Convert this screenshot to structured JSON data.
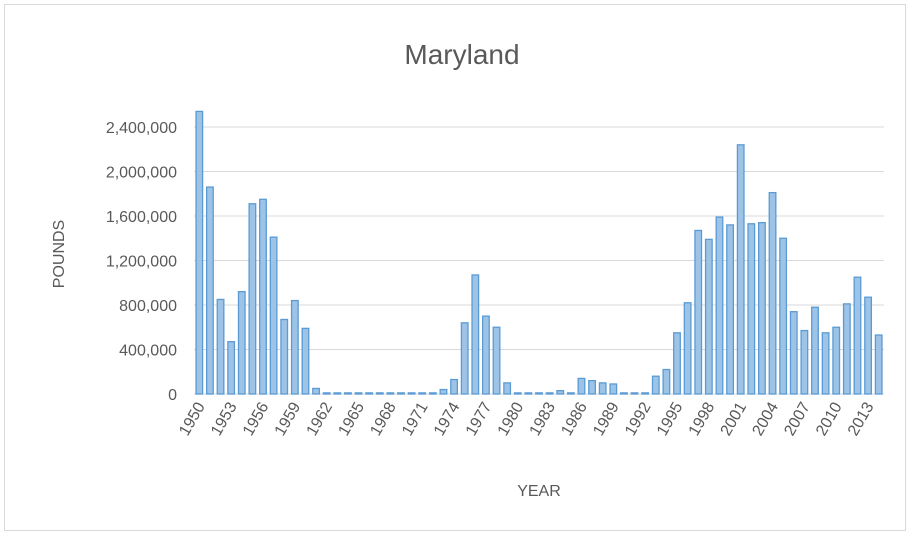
{
  "chart_data": {
    "type": "bar",
    "title": "Maryland",
    "xlabel": "YEAR",
    "ylabel": "POUNDS",
    "ylim": [
      0,
      2600000
    ],
    "y_ticks": [
      0,
      400000,
      800000,
      1200000,
      1600000,
      2000000,
      2400000
    ],
    "y_tick_labels": [
      "0",
      "400,000",
      "800,000",
      "1,200,000",
      "1,600,000",
      "2,000,000",
      "2,400,000"
    ],
    "x_tick_labels": [
      "1950",
      "1953",
      "1956",
      "1959",
      "1962",
      "1965",
      "1968",
      "1971",
      "1974",
      "1977",
      "1980",
      "1983",
      "1986",
      "1989",
      "1992",
      "1995",
      "1998",
      "2001",
      "2004",
      "2007",
      "2010",
      "2013"
    ],
    "grid": true,
    "categories": [
      "1950",
      "1951",
      "1952",
      "1953",
      "1954",
      "1955",
      "1956",
      "1957",
      "1958",
      "1959",
      "1960",
      "1961",
      "1962",
      "1963",
      "1964",
      "1965",
      "1966",
      "1967",
      "1968",
      "1969",
      "1970",
      "1971",
      "1972",
      "1973",
      "1974",
      "1975",
      "1976",
      "1977",
      "1978",
      "1979",
      "1980",
      "1981",
      "1982",
      "1983",
      "1984",
      "1985",
      "1986",
      "1987",
      "1988",
      "1989",
      "1990",
      "1991",
      "1992",
      "1993",
      "1994",
      "1995",
      "1996",
      "1997",
      "1998",
      "1999",
      "2000",
      "2001",
      "2002",
      "2003",
      "2004",
      "2005",
      "2006",
      "2007",
      "2008",
      "2009",
      "2010",
      "2011",
      "2012",
      "2013",
      "2014"
    ],
    "values": [
      2540000,
      1860000,
      850000,
      470000,
      920000,
      1710000,
      1750000,
      1410000,
      670000,
      840000,
      590000,
      50000,
      10000,
      10000,
      10000,
      10000,
      10000,
      10000,
      10000,
      10000,
      10000,
      10000,
      10000,
      40000,
      130000,
      640000,
      1070000,
      700000,
      600000,
      100000,
      10000,
      10000,
      10000,
      10000,
      30000,
      10000,
      140000,
      120000,
      100000,
      90000,
      10000,
      10000,
      10000,
      160000,
      220000,
      550000,
      820000,
      1470000,
      1390000,
      1590000,
      1520000,
      2240000,
      1530000,
      1540000,
      1810000,
      1400000,
      740000,
      570000,
      780000,
      550000,
      600000,
      810000,
      1050000,
      870000,
      530000
    ]
  }
}
